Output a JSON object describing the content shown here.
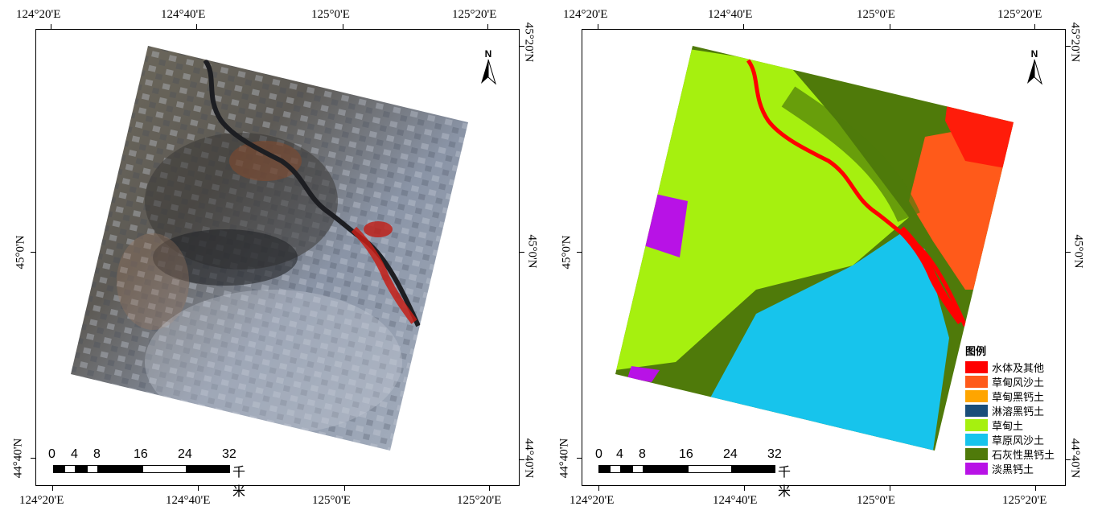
{
  "panels": [
    {
      "id": "satellite",
      "top_labels": [
        "124°20'E",
        "124°40'E",
        "125°0'E",
        "125°20'E"
      ],
      "bottom_labels": [
        "124°20'E",
        "124°40'E",
        "125°0'E",
        "125°20'E"
      ],
      "left_labels": [
        "45°0'N",
        "44°40'N"
      ],
      "right_labels": [
        "45°20'N",
        "45°0'N",
        "44°40'N"
      ],
      "north": "N",
      "scale": {
        "numbers": [
          "0",
          "4",
          "8",
          "16",
          "24",
          "32"
        ],
        "unit": "千米"
      }
    },
    {
      "id": "classification",
      "top_labels": [
        "124°20'E",
        "124°40'E",
        "125°0'E",
        "125°20'E"
      ],
      "bottom_labels": [
        "124°20'E",
        "124°40'E",
        "125°0'E",
        "125°20'E"
      ],
      "left_labels": [
        "45°0'N",
        "44°40'N"
      ],
      "right_labels": [
        "45°20'N",
        "45°0'N",
        "44°40'N"
      ],
      "north": "N",
      "scale": {
        "numbers": [
          "0",
          "4",
          "8",
          "16",
          "24",
          "32"
        ],
        "unit": "千米"
      }
    }
  ],
  "legend": {
    "title": "图例",
    "items": [
      {
        "label": "水体及其他",
        "color": "#ff0000"
      },
      {
        "label": "草甸风沙土",
        "color": "#ff5a1a"
      },
      {
        "label": "草甸黑钙土",
        "color": "#ffa500"
      },
      {
        "label": "淋溶黑钙土",
        "color": "#1a4e7a"
      },
      {
        "label": "草甸土",
        "color": "#a6f00f"
      },
      {
        "label": "草原风沙土",
        "color": "#17c4ec"
      },
      {
        "label": "石灰性黑钙土",
        "color": "#4f7a0a"
      },
      {
        "label": "淡黑钙土",
        "color": "#b812e6"
      }
    ]
  }
}
